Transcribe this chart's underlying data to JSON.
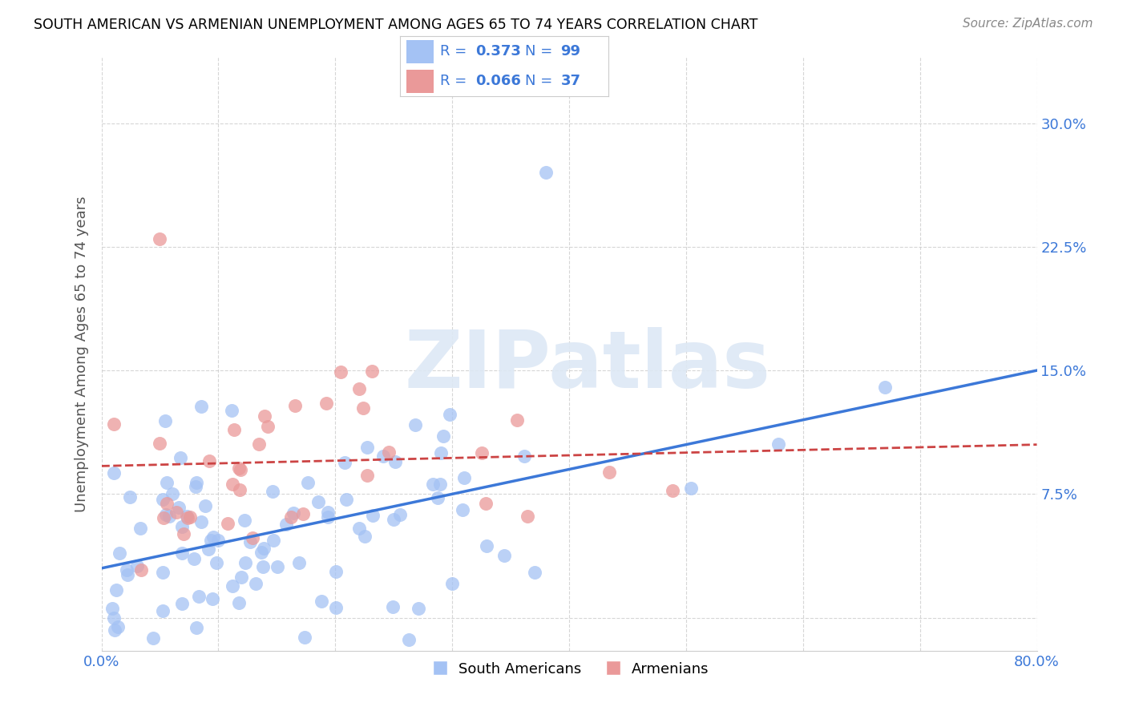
{
  "title": "SOUTH AMERICAN VS ARMENIAN UNEMPLOYMENT AMONG AGES 65 TO 74 YEARS CORRELATION CHART",
  "source": "Source: ZipAtlas.com",
  "ylabel": "Unemployment Among Ages 65 to 74 years",
  "xlim": [
    0.0,
    0.8
  ],
  "ylim": [
    -0.02,
    0.34
  ],
  "yticks": [
    0.0,
    0.075,
    0.15,
    0.225,
    0.3
  ],
  "ytick_labels": [
    "",
    "7.5%",
    "15.0%",
    "22.5%",
    "30.0%"
  ],
  "xticks": [
    0.0,
    0.1,
    0.2,
    0.3,
    0.4,
    0.5,
    0.6,
    0.7,
    0.8
  ],
  "south_american_color": "#a4c2f4",
  "armenian_color": "#ea9999",
  "south_american_line_color": "#3c78d8",
  "armenian_line_color": "#cc4444",
  "sa_line_start_y": 0.03,
  "sa_line_end_y": 0.15,
  "ar_line_start_y": 0.092,
  "ar_line_end_y": 0.105,
  "watermark_text": "ZIPatlas",
  "sa_seed": 7,
  "ar_seed": 13
}
